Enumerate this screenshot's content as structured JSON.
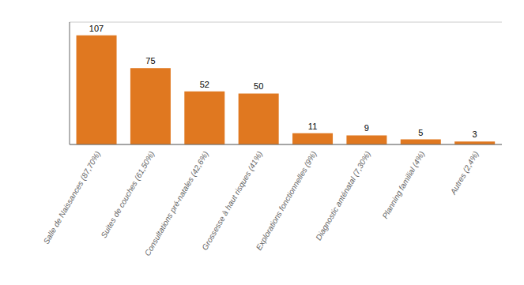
{
  "chart_data": {
    "type": "bar",
    "categories": [
      "Salle de Naissances (87,70%)",
      "Suites de couches (61,50%)",
      "Consultations pré-natales (42,6%)",
      "Grossesse à haut risques (41%)",
      "Explorations fonctionnelles (9%)",
      "Diagnostic anténatal (7,30%)",
      "Planning familial (4%)",
      "Autres (2,4%)"
    ],
    "values": [
      107,
      75,
      52,
      50,
      11,
      9,
      5,
      3
    ],
    "color": "#E07820",
    "ylim": [
      0,
      120
    ],
    "yticks": [
      20,
      40,
      60,
      80,
      100,
      120
    ],
    "grid": true,
    "data_labels": true,
    "tick_labels": "x"
  }
}
